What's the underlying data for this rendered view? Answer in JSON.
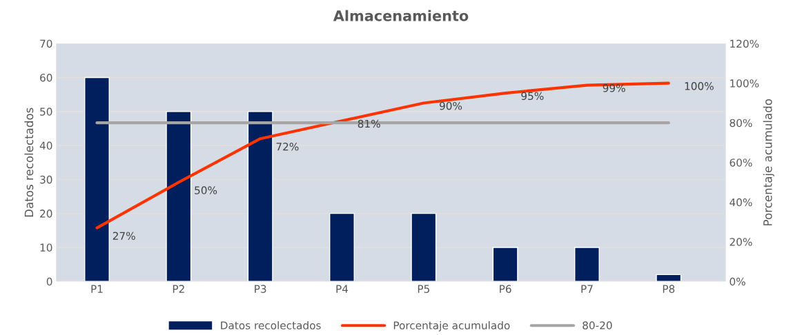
{
  "chart_data": {
    "type": "bar",
    "title": "Almacenamiento",
    "ylabel": "Datos recolectados",
    "y2label": "Porcentaje acumulado",
    "categories": [
      "P1",
      "P2",
      "P3",
      "P4",
      "P5",
      "P6",
      "P7",
      "P8"
    ],
    "series": [
      {
        "name": "Datos recolectados",
        "color": "#001f5c",
        "values": [
          60,
          50,
          50,
          20,
          20,
          10,
          10,
          2
        ]
      },
      {
        "name": "Porcentaje acumulado",
        "type": "line",
        "axis": "y2",
        "color": "#ff3300",
        "values": [
          27,
          50,
          72,
          81,
          90,
          95,
          99,
          100
        ],
        "value_labels": [
          "27%",
          "50%",
          "72%",
          "81%",
          "90%",
          "95%",
          "99%",
          "100%"
        ]
      },
      {
        "name": "80-20",
        "type": "line",
        "axis": "y2",
        "color": "#a5a5a5",
        "values": [
          80,
          80,
          80,
          80,
          80,
          80,
          80,
          80
        ]
      }
    ],
    "ylim": [
      0,
      70
    ],
    "yticks": [
      0,
      10,
      20,
      30,
      40,
      50,
      60,
      70
    ],
    "y2lim": [
      0,
      120
    ],
    "y2ticks": [
      {
        "value": 0,
        "label": "0%"
      },
      {
        "value": 20,
        "label": "20%"
      },
      {
        "value": 40,
        "label": "40%"
      },
      {
        "value": 60,
        "label": "60%"
      },
      {
        "value": 80,
        "label": "80%"
      },
      {
        "value": 100,
        "label": "100%"
      },
      {
        "value": 120,
        "label": "120%"
      }
    ],
    "grid": "y",
    "legend": "bottom"
  }
}
